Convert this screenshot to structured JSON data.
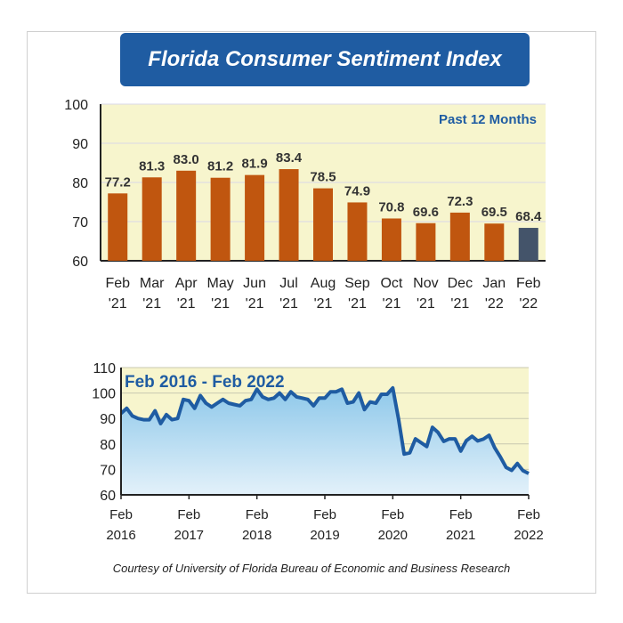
{
  "title": "Florida Consumer Sentiment Index",
  "footer": "Courtesy of University of Florida Bureau of Economic and Business Research",
  "colors": {
    "banner": "#1f5ca2",
    "bar": "#c0560f",
    "bar_latest": "#44546a",
    "plot_bg": "#f7f5cd",
    "line": "#1f5ca2",
    "area_top": "#8ec8ea",
    "area_bottom": "#e3f1fa"
  },
  "chart_data": [
    {
      "type": "bar",
      "title": "Past 12 Months",
      "ylim": [
        60,
        100
      ],
      "yticks": [
        "60",
        "70",
        "80",
        "90",
        "100"
      ],
      "grid": true,
      "categories": [
        [
          "Feb",
          "'21"
        ],
        [
          "Mar",
          "'21"
        ],
        [
          "Apr",
          "'21"
        ],
        [
          "May",
          "'21"
        ],
        [
          "Jun",
          "'21"
        ],
        [
          "Jul",
          "'21"
        ],
        [
          "Aug",
          "'21"
        ],
        [
          "Sep",
          "'21"
        ],
        [
          "Oct",
          "'21"
        ],
        [
          "Nov",
          "'21"
        ],
        [
          "Dec",
          "'21"
        ],
        [
          "Jan",
          "'22"
        ],
        [
          "Feb",
          "'22"
        ]
      ],
      "values": [
        77.2,
        81.3,
        83.0,
        81.2,
        81.9,
        83.4,
        78.5,
        74.9,
        70.8,
        69.6,
        72.3,
        69.5,
        68.4
      ],
      "labels": [
        "77.2",
        "81.3",
        "83.0",
        "81.2",
        "81.9",
        "83.4",
        "78.5",
        "74.9",
        "70.8",
        "69.6",
        "72.3",
        "69.5",
        "68.4"
      ]
    },
    {
      "type": "area",
      "title": "Feb 2016 - Feb 2022",
      "ylim": [
        60,
        110
      ],
      "yticks": [
        "60",
        "70",
        "80",
        "90",
        "100",
        "110"
      ],
      "grid": true,
      "xticks": [
        [
          "Feb",
          "2016"
        ],
        [
          "Feb",
          "2017"
        ],
        [
          "Feb",
          "2018"
        ],
        [
          "Feb",
          "2019"
        ],
        [
          "Feb",
          "2020"
        ],
        [
          "Feb",
          "2021"
        ],
        [
          "Feb",
          "2022"
        ]
      ],
      "x_start": "2016-02",
      "x_end": "2022-02",
      "frequency": "monthly",
      "values": [
        92,
        94,
        91,
        90,
        89.5,
        89.5,
        93,
        88,
        91.5,
        89.5,
        90,
        97.5,
        97,
        94,
        99,
        96,
        94.5,
        96,
        97.5,
        96,
        95.5,
        95,
        97,
        97.5,
        101.5,
        98.5,
        97.5,
        98,
        100,
        97.5,
        100.5,
        98.5,
        98,
        97.5,
        95,
        98,
        98,
        100.5,
        100.5,
        101.5,
        96,
        96.5,
        100,
        93.5,
        96.5,
        96,
        99.5,
        99.5,
        102,
        90,
        76,
        76.5,
        82,
        80.5,
        79,
        86.5,
        84.5,
        81,
        82,
        82,
        77.2,
        81.3,
        83.0,
        81.2,
        81.9,
        83.4,
        78.5,
        74.9,
        70.8,
        69.6,
        72.3,
        69.5,
        68.4
      ]
    }
  ]
}
